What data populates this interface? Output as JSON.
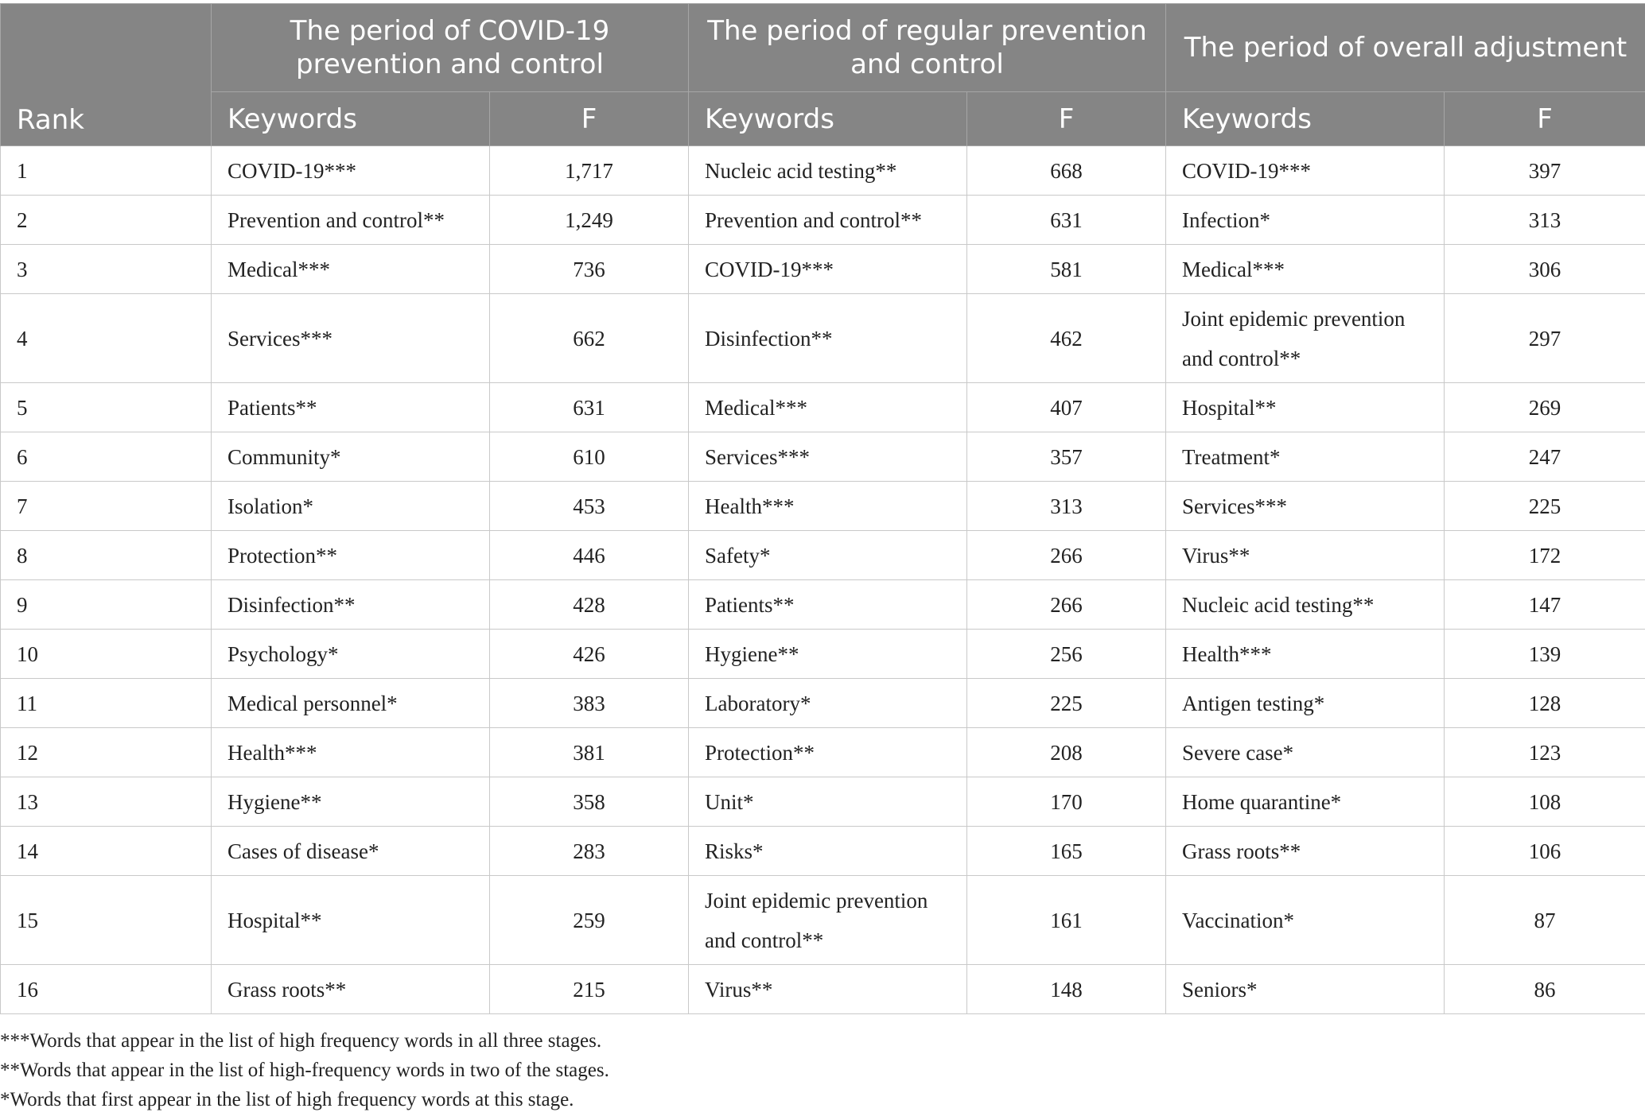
{
  "headers": {
    "rank": "Rank",
    "periods": [
      "The period of COVID-19 prevention and control",
      "The period of regular prevention and control",
      "The period of overall adjustment"
    ],
    "keywords": "Keywords",
    "frequency": "F"
  },
  "rows": [
    {
      "rank": "1",
      "p1_kw": "COVID-19***",
      "p1_f": "1,717",
      "p2_kw": "Nucleic acid testing**",
      "p2_f": "668",
      "p3_kw": "COVID-19***",
      "p3_f": "397"
    },
    {
      "rank": "2",
      "p1_kw": "Prevention and control**",
      "p1_f": "1,249",
      "p2_kw": "Prevention and control**",
      "p2_f": "631",
      "p3_kw": "Infection*",
      "p3_f": "313"
    },
    {
      "rank": "3",
      "p1_kw": "Medical***",
      "p1_f": "736",
      "p2_kw": "COVID-19***",
      "p2_f": "581",
      "p3_kw": "Medical***",
      "p3_f": "306"
    },
    {
      "rank": "4",
      "p1_kw": "Services***",
      "p1_f": "662",
      "p2_kw": "Disinfection**",
      "p2_f": "462",
      "p3_kw": "Joint epidemic prevention and control**",
      "p3_f": "297"
    },
    {
      "rank": "5",
      "p1_kw": "Patients**",
      "p1_f": "631",
      "p2_kw": "Medical***",
      "p2_f": "407",
      "p3_kw": "Hospital**",
      "p3_f": "269"
    },
    {
      "rank": "6",
      "p1_kw": "Community*",
      "p1_f": "610",
      "p2_kw": "Services***",
      "p2_f": "357",
      "p3_kw": "Treatment*",
      "p3_f": "247"
    },
    {
      "rank": "7",
      "p1_kw": "Isolation*",
      "p1_f": "453",
      "p2_kw": "Health***",
      "p2_f": "313",
      "p3_kw": "Services***",
      "p3_f": "225"
    },
    {
      "rank": "8",
      "p1_kw": "Protection**",
      "p1_f": "446",
      "p2_kw": "Safety*",
      "p2_f": "266",
      "p3_kw": "Virus**",
      "p3_f": "172"
    },
    {
      "rank": "9",
      "p1_kw": "Disinfection**",
      "p1_f": "428",
      "p2_kw": "Patients**",
      "p2_f": "266",
      "p3_kw": "Nucleic acid testing**",
      "p3_f": "147"
    },
    {
      "rank": "10",
      "p1_kw": "Psychology*",
      "p1_f": "426",
      "p2_kw": "Hygiene**",
      "p2_f": "256",
      "p3_kw": "Health***",
      "p3_f": "139"
    },
    {
      "rank": "11",
      "p1_kw": "Medical personnel*",
      "p1_f": "383",
      "p2_kw": "Laboratory*",
      "p2_f": "225",
      "p3_kw": "Antigen testing*",
      "p3_f": "128"
    },
    {
      "rank": "12",
      "p1_kw": "Health***",
      "p1_f": "381",
      "p2_kw": "Protection**",
      "p2_f": "208",
      "p3_kw": "Severe case*",
      "p3_f": "123"
    },
    {
      "rank": "13",
      "p1_kw": "Hygiene**",
      "p1_f": "358",
      "p2_kw": "Unit*",
      "p2_f": "170",
      "p3_kw": "Home quarantine*",
      "p3_f": "108"
    },
    {
      "rank": "14",
      "p1_kw": "Cases of disease*",
      "p1_f": "283",
      "p2_kw": "Risks*",
      "p2_f": "165",
      "p3_kw": "Grass roots**",
      "p3_f": "106"
    },
    {
      "rank": "15",
      "p1_kw": "Hospital**",
      "p1_f": "259",
      "p2_kw": "Joint epidemic prevention and control**",
      "p2_f": "161",
      "p3_kw": "Vaccination*",
      "p3_f": "87"
    },
    {
      "rank": "16",
      "p1_kw": "Grass roots**",
      "p1_f": "215",
      "p2_kw": "Virus**",
      "p2_f": "148",
      "p3_kw": "Seniors*",
      "p3_f": "86"
    }
  ],
  "notes": [
    "***Words that appear in the list of high frequency words in all three stages.",
    "**Words that appear in the list of high-frequency words in two of the stages.",
    "*Words that first appear in the list of high frequency words at this stage."
  ]
}
